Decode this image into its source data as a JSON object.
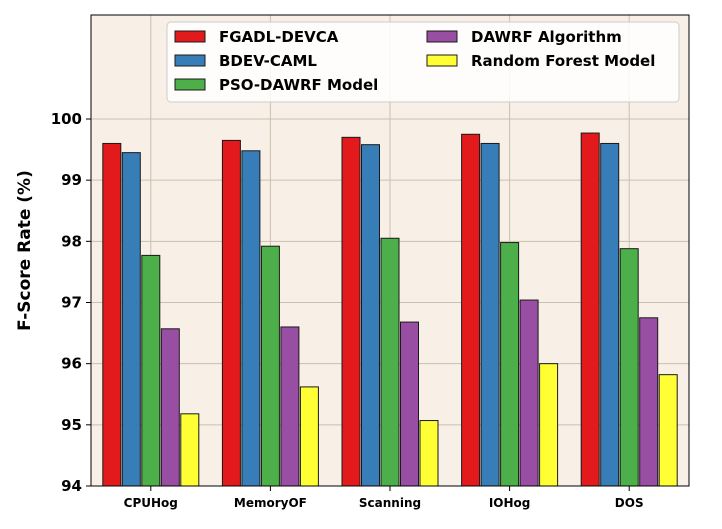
{
  "chart_data": {
    "type": "bar",
    "title": "",
    "xlabel": "",
    "ylabel": "F-Score Rate (%)",
    "ylim": [
      94,
      101.7
    ],
    "yticks": [
      94,
      95,
      96,
      97,
      98,
      99,
      100
    ],
    "grid": true,
    "legend_position": "top",
    "categories": [
      "CPUHog",
      "MemoryOF",
      "Scanning",
      "IOHog",
      "DOS"
    ],
    "series": [
      {
        "name": "FGADL-DEVCA",
        "color": "#e31a1c",
        "values": [
          99.6,
          99.65,
          99.7,
          99.75,
          99.77
        ]
      },
      {
        "name": "BDEV-CAML",
        "color": "#377eb8",
        "values": [
          99.45,
          99.48,
          99.58,
          99.6,
          99.6
        ]
      },
      {
        "name": "PSO-DAWRF Model",
        "color": "#4daf4a",
        "values": [
          97.77,
          97.92,
          98.05,
          97.98,
          97.88
        ]
      },
      {
        "name": "DAWRF Algorithm",
        "color": "#984ea3",
        "values": [
          96.57,
          96.6,
          96.68,
          97.04,
          96.75
        ]
      },
      {
        "name": "Random Forest Model",
        "color": "#ffff33",
        "values": [
          95.18,
          95.62,
          95.07,
          96.0,
          95.82
        ]
      }
    ]
  },
  "style": {
    "plot_background": "#f8efe6",
    "grid_color": "#cbbfae",
    "bar_edge": "#1a1a1a"
  }
}
